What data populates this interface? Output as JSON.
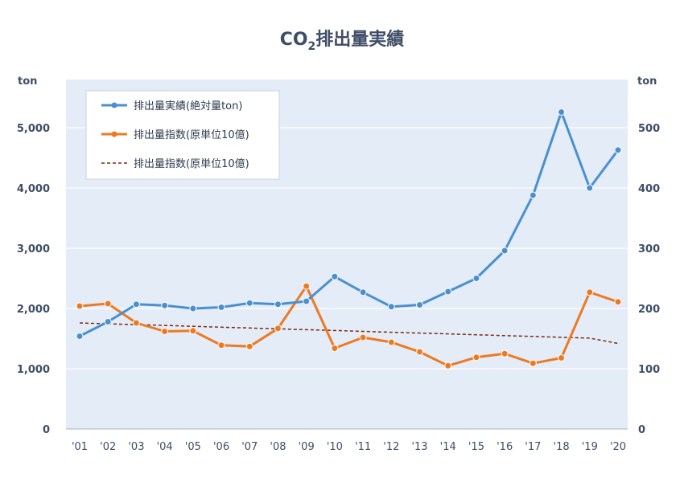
{
  "chart_data": {
    "type": "line",
    "title_main": "CO",
    "title_sub": "2",
    "title_rest": "排出量実績",
    "left_unit": "ton",
    "right_unit": "ton",
    "categories": [
      "'01",
      "'02",
      "'03",
      "'04",
      "'05",
      "'06",
      "'07",
      "'08",
      "'09",
      "'10",
      "'11",
      "'12",
      "'13",
      "'14",
      "'15",
      "'16",
      "'17",
      "'18",
      "'19",
      "'20"
    ],
    "y_left": {
      "ylim": [
        0,
        5800
      ],
      "ticks": [
        0,
        1000,
        2000,
        3000,
        4000,
        5000
      ],
      "tick_labels": [
        "0",
        "1,000",
        "2,000",
        "3,000",
        "4,000",
        "5,000"
      ]
    },
    "y_right": {
      "ylim": [
        0,
        580
      ],
      "ticks": [
        0,
        100,
        200,
        300,
        400,
        500
      ],
      "tick_labels": [
        "0",
        "100",
        "200",
        "300",
        "400",
        "500"
      ]
    },
    "series": [
      {
        "name": "排出量実績(絶対量ton)",
        "axis": "left",
        "style": "line-marker",
        "color": "#4a90cf",
        "values": [
          1540,
          1780,
          2070,
          2050,
          2000,
          2020,
          2090,
          2070,
          2120,
          2530,
          2270,
          2030,
          2060,
          2280,
          2500,
          2960,
          3880,
          5260,
          4000,
          4630
        ]
      },
      {
        "name": "排出量指数(原単位10億)",
        "axis": "right",
        "style": "line-marker",
        "color": "#ed7a22",
        "values": [
          204,
          208,
          176,
          162,
          163,
          139,
          137,
          167,
          237,
          134,
          152,
          144,
          128,
          105,
          119,
          125,
          109,
          118,
          227,
          211
        ]
      },
      {
        "name": "排出量指数(原単位10億)",
        "axis": "right",
        "style": "dashed-trend",
        "color": "#7a2a10",
        "values": [
          176,
          174.6,
          173.2,
          171.8,
          170.4,
          169,
          167.6,
          166.2,
          164.8,
          163.4,
          162,
          160.6,
          159.2,
          157.8,
          156.4,
          155,
          153.6,
          152.2,
          150.8,
          142
        ]
      }
    ],
    "grid": true,
    "legend_placement": "top-left"
  }
}
